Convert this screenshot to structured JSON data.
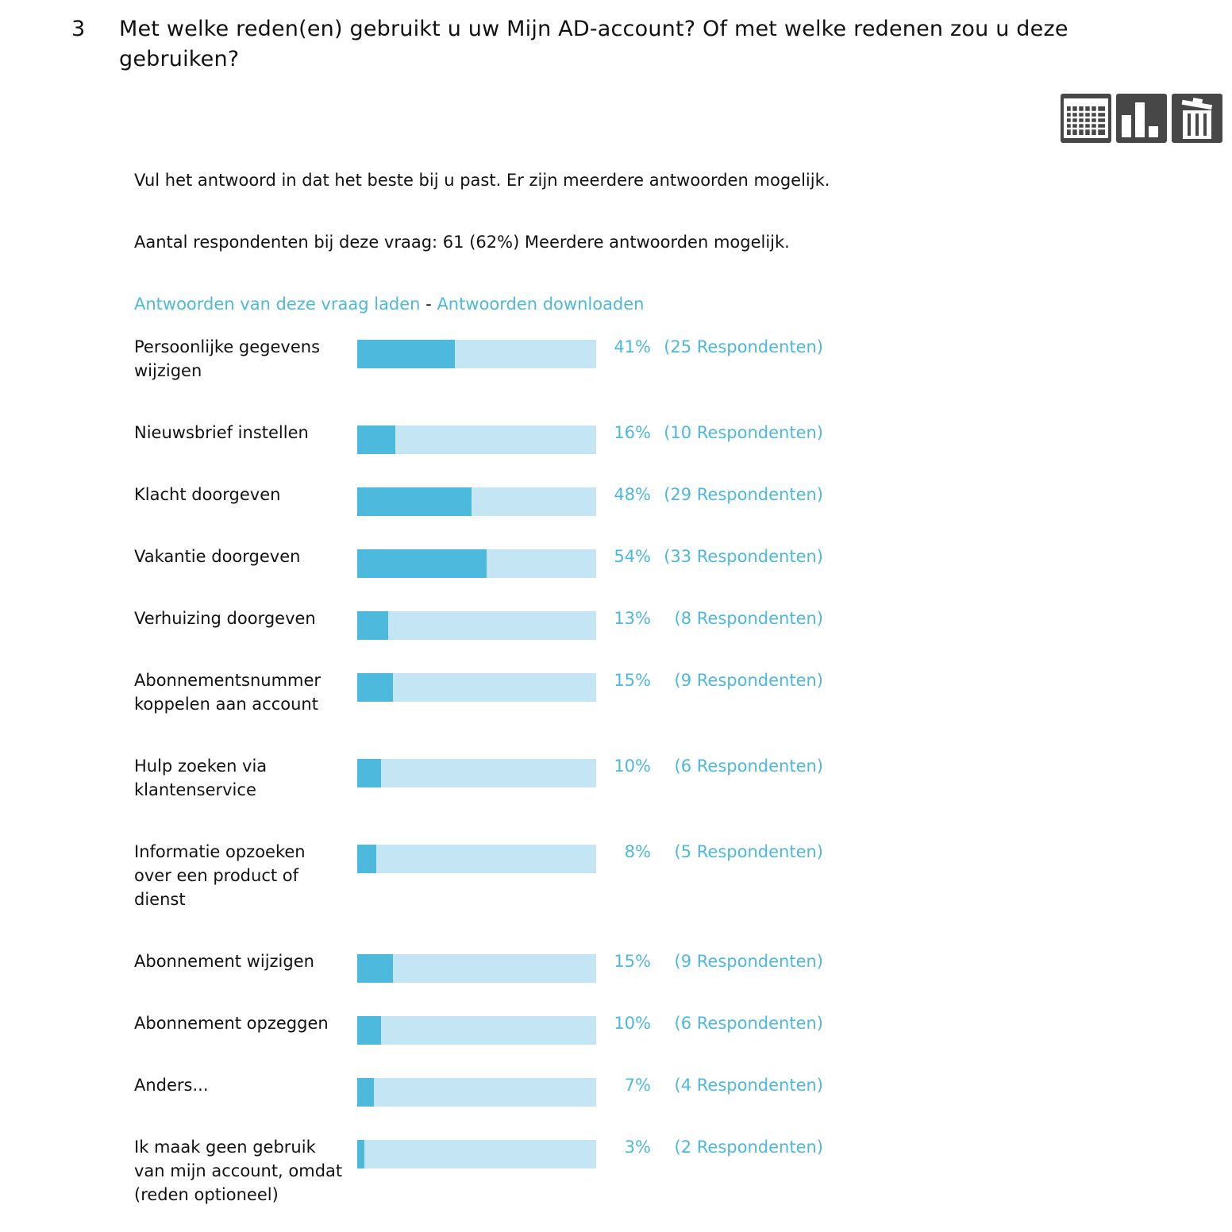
{
  "question": {
    "number": "3",
    "title": "Met welke reden(en) gebruikt u uw Mijn AD-account? Of met welke redenen zou u deze gebruiken?"
  },
  "toolbar": {
    "buttons": [
      {
        "icon": "table-icon"
      },
      {
        "icon": "bar-chart-icon"
      },
      {
        "icon": "trash-icon"
      }
    ],
    "button_color": "#474747"
  },
  "instruction": "Vul het antwoord in dat het beste bij u past. Er zijn meerdere antwoorden mogelijk.",
  "respondents_text": "Aantal respondenten bij deze vraag: 61 (62%) Meerdere antwoorden mogelijk.",
  "links": {
    "load_label": "Antwoorden van deze vraag laden",
    "separator": " - ",
    "download_label": "Antwoorden downloaden",
    "color": "#4db8dd"
  },
  "colors": {
    "bar_fill": "#4db9dd",
    "bar_track": "#c4e5f4",
    "accent_text": "#4db8dd"
  },
  "chart_data": {
    "type": "bar",
    "orientation": "horizontal",
    "categories": [
      "Persoonlijke gegevens wijzigen",
      "Nieuwsbrief instellen",
      "Klacht doorgeven",
      "Vakantie doorgeven",
      "Verhuizing doorgeven",
      "Abonnementsnummer koppelen aan account",
      "Hulp zoeken via klantenservice",
      "Informatie opzoeken over een product of dienst",
      "Abonnement wijzigen",
      "Abonnement opzeggen",
      "Anders...",
      "Ik maak geen gebruik van mijn account, omdat (reden optioneel)"
    ],
    "values": [
      41,
      16,
      48,
      54,
      13,
      15,
      10,
      8,
      15,
      10,
      7,
      3
    ],
    "percent_labels": [
      "41%",
      "16%",
      "48%",
      "54%",
      "13%",
      "15%",
      "10%",
      "8%",
      "15%",
      "10%",
      "7%",
      "3%"
    ],
    "count_labels": [
      "(25 Respondenten)",
      "(10 Respondenten)",
      "(29 Respondenten)",
      "(33 Respondenten)",
      "(8 Respondenten)",
      "(9 Respondenten)",
      "(6 Respondenten)",
      "(5 Respondenten)",
      "(9 Respondenten)",
      "(6 Respondenten)",
      "(4 Respondenten)",
      "(2 Respondenten)"
    ],
    "xlim": [
      0,
      100
    ],
    "grid": false,
    "legend": "none"
  }
}
